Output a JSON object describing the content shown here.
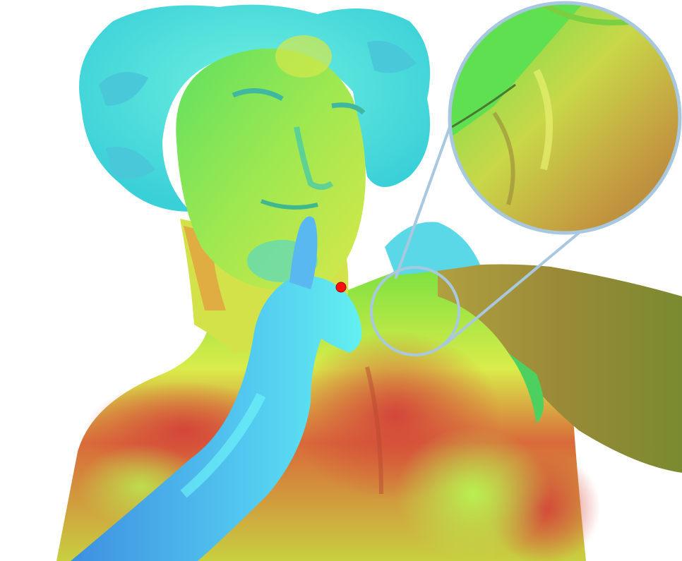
{
  "figure": {
    "kind": "3d-mesh-heatmap-rendering",
    "subject": "statue-bust",
    "colormap": [
      "#3f8fe0",
      "#5ff0f0",
      "#45e060",
      "#e8f050",
      "#d64a3a"
    ],
    "markers": [
      {
        "name": "source-point",
        "color": "#ff0000"
      }
    ],
    "inset": {
      "shape": "magnifier-circle",
      "stroke_color": "#a8c8e0"
    }
  }
}
